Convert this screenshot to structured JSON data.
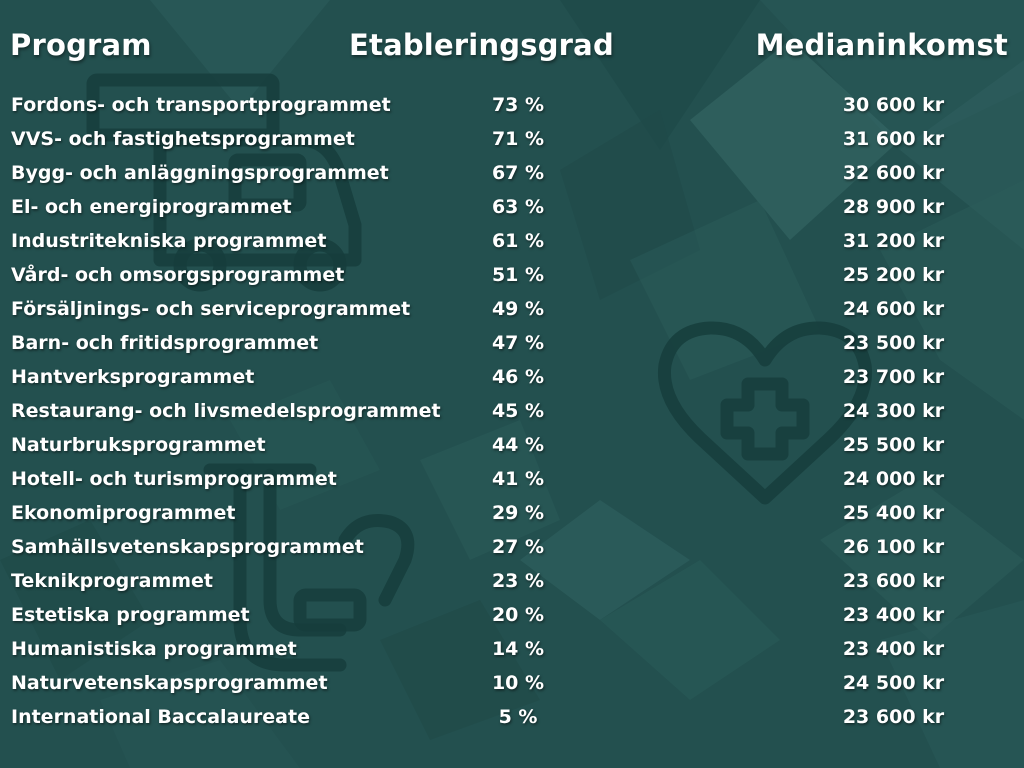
{
  "headers": {
    "program": "Program",
    "etableringsgrad": "Etableringsgrad",
    "medianinkomst": "Medianinkomst"
  },
  "rows": [
    {
      "program": "Fordons- och transportprogrammet",
      "etableringsgrad": "73 %",
      "medianinkomst": "30 600 kr"
    },
    {
      "program": "VVS- och fastighetsprogrammet",
      "etableringsgrad": "71 %",
      "medianinkomst": "31 600 kr"
    },
    {
      "program": "Bygg- och anläggningsprogrammet",
      "etableringsgrad": "67 %",
      "medianinkomst": "32 600 kr"
    },
    {
      "program": "El- och energiprogrammet",
      "etableringsgrad": "63 %",
      "medianinkomst": "28 900 kr"
    },
    {
      "program": "Industritekniska programmet",
      "etableringsgrad": "61 %",
      "medianinkomst": "31 200 kr"
    },
    {
      "program": "Vård- och omsorgsprogrammet",
      "etableringsgrad": "51 %",
      "medianinkomst": "25 200 kr"
    },
    {
      "program": "Försäljnings- och serviceprogrammet",
      "etableringsgrad": "49 %",
      "medianinkomst": "24 600 kr"
    },
    {
      "program": "Barn- och fritidsprogrammet",
      "etableringsgrad": "47 %",
      "medianinkomst": "23 500 kr"
    },
    {
      "program": "Hantverksprogrammet",
      "etableringsgrad": "46 %",
      "medianinkomst": "23 700 kr"
    },
    {
      "program": "Restaurang- och livsmedelsprogrammet",
      "etableringsgrad": "45 %",
      "medianinkomst": "24 300 kr"
    },
    {
      "program": "Naturbruksprogrammet",
      "etableringsgrad": "44 %",
      "medianinkomst": "25 500 kr"
    },
    {
      "program": "Hotell- och turismprogrammet",
      "etableringsgrad": "41 %",
      "medianinkomst": "24 000 kr"
    },
    {
      "program": "Ekonomiprogrammet",
      "etableringsgrad": "29 %",
      "medianinkomst": "25 400 kr"
    },
    {
      "program": "Samhällsvetenskapsprogrammet",
      "etableringsgrad": "27 %",
      "medianinkomst": "26 100 kr"
    },
    {
      "program": "Teknikprogrammet",
      "etableringsgrad": "23 %",
      "medianinkomst": "23 600 kr"
    },
    {
      "program": "Estetiska programmet",
      "etableringsgrad": "20 %",
      "medianinkomst": "23 400 kr"
    },
    {
      "program": "Humanistiska programmet",
      "etableringsgrad": "14 %",
      "medianinkomst": "23 400 kr"
    },
    {
      "program": "Naturvetenskapsprogrammet",
      "etableringsgrad": "10 %",
      "medianinkomst": "24 500 kr"
    },
    {
      "program": "International Baccalaureate",
      "etableringsgrad": "5 %",
      "medianinkomst": "23 600 kr"
    }
  ],
  "colors": {
    "background": "#23504f",
    "text": "#ffffff",
    "icon_stroke": "#163d3c"
  },
  "decorative_icons": [
    "truck-icon",
    "heart-plus-icon",
    "pipe-icon"
  ]
}
